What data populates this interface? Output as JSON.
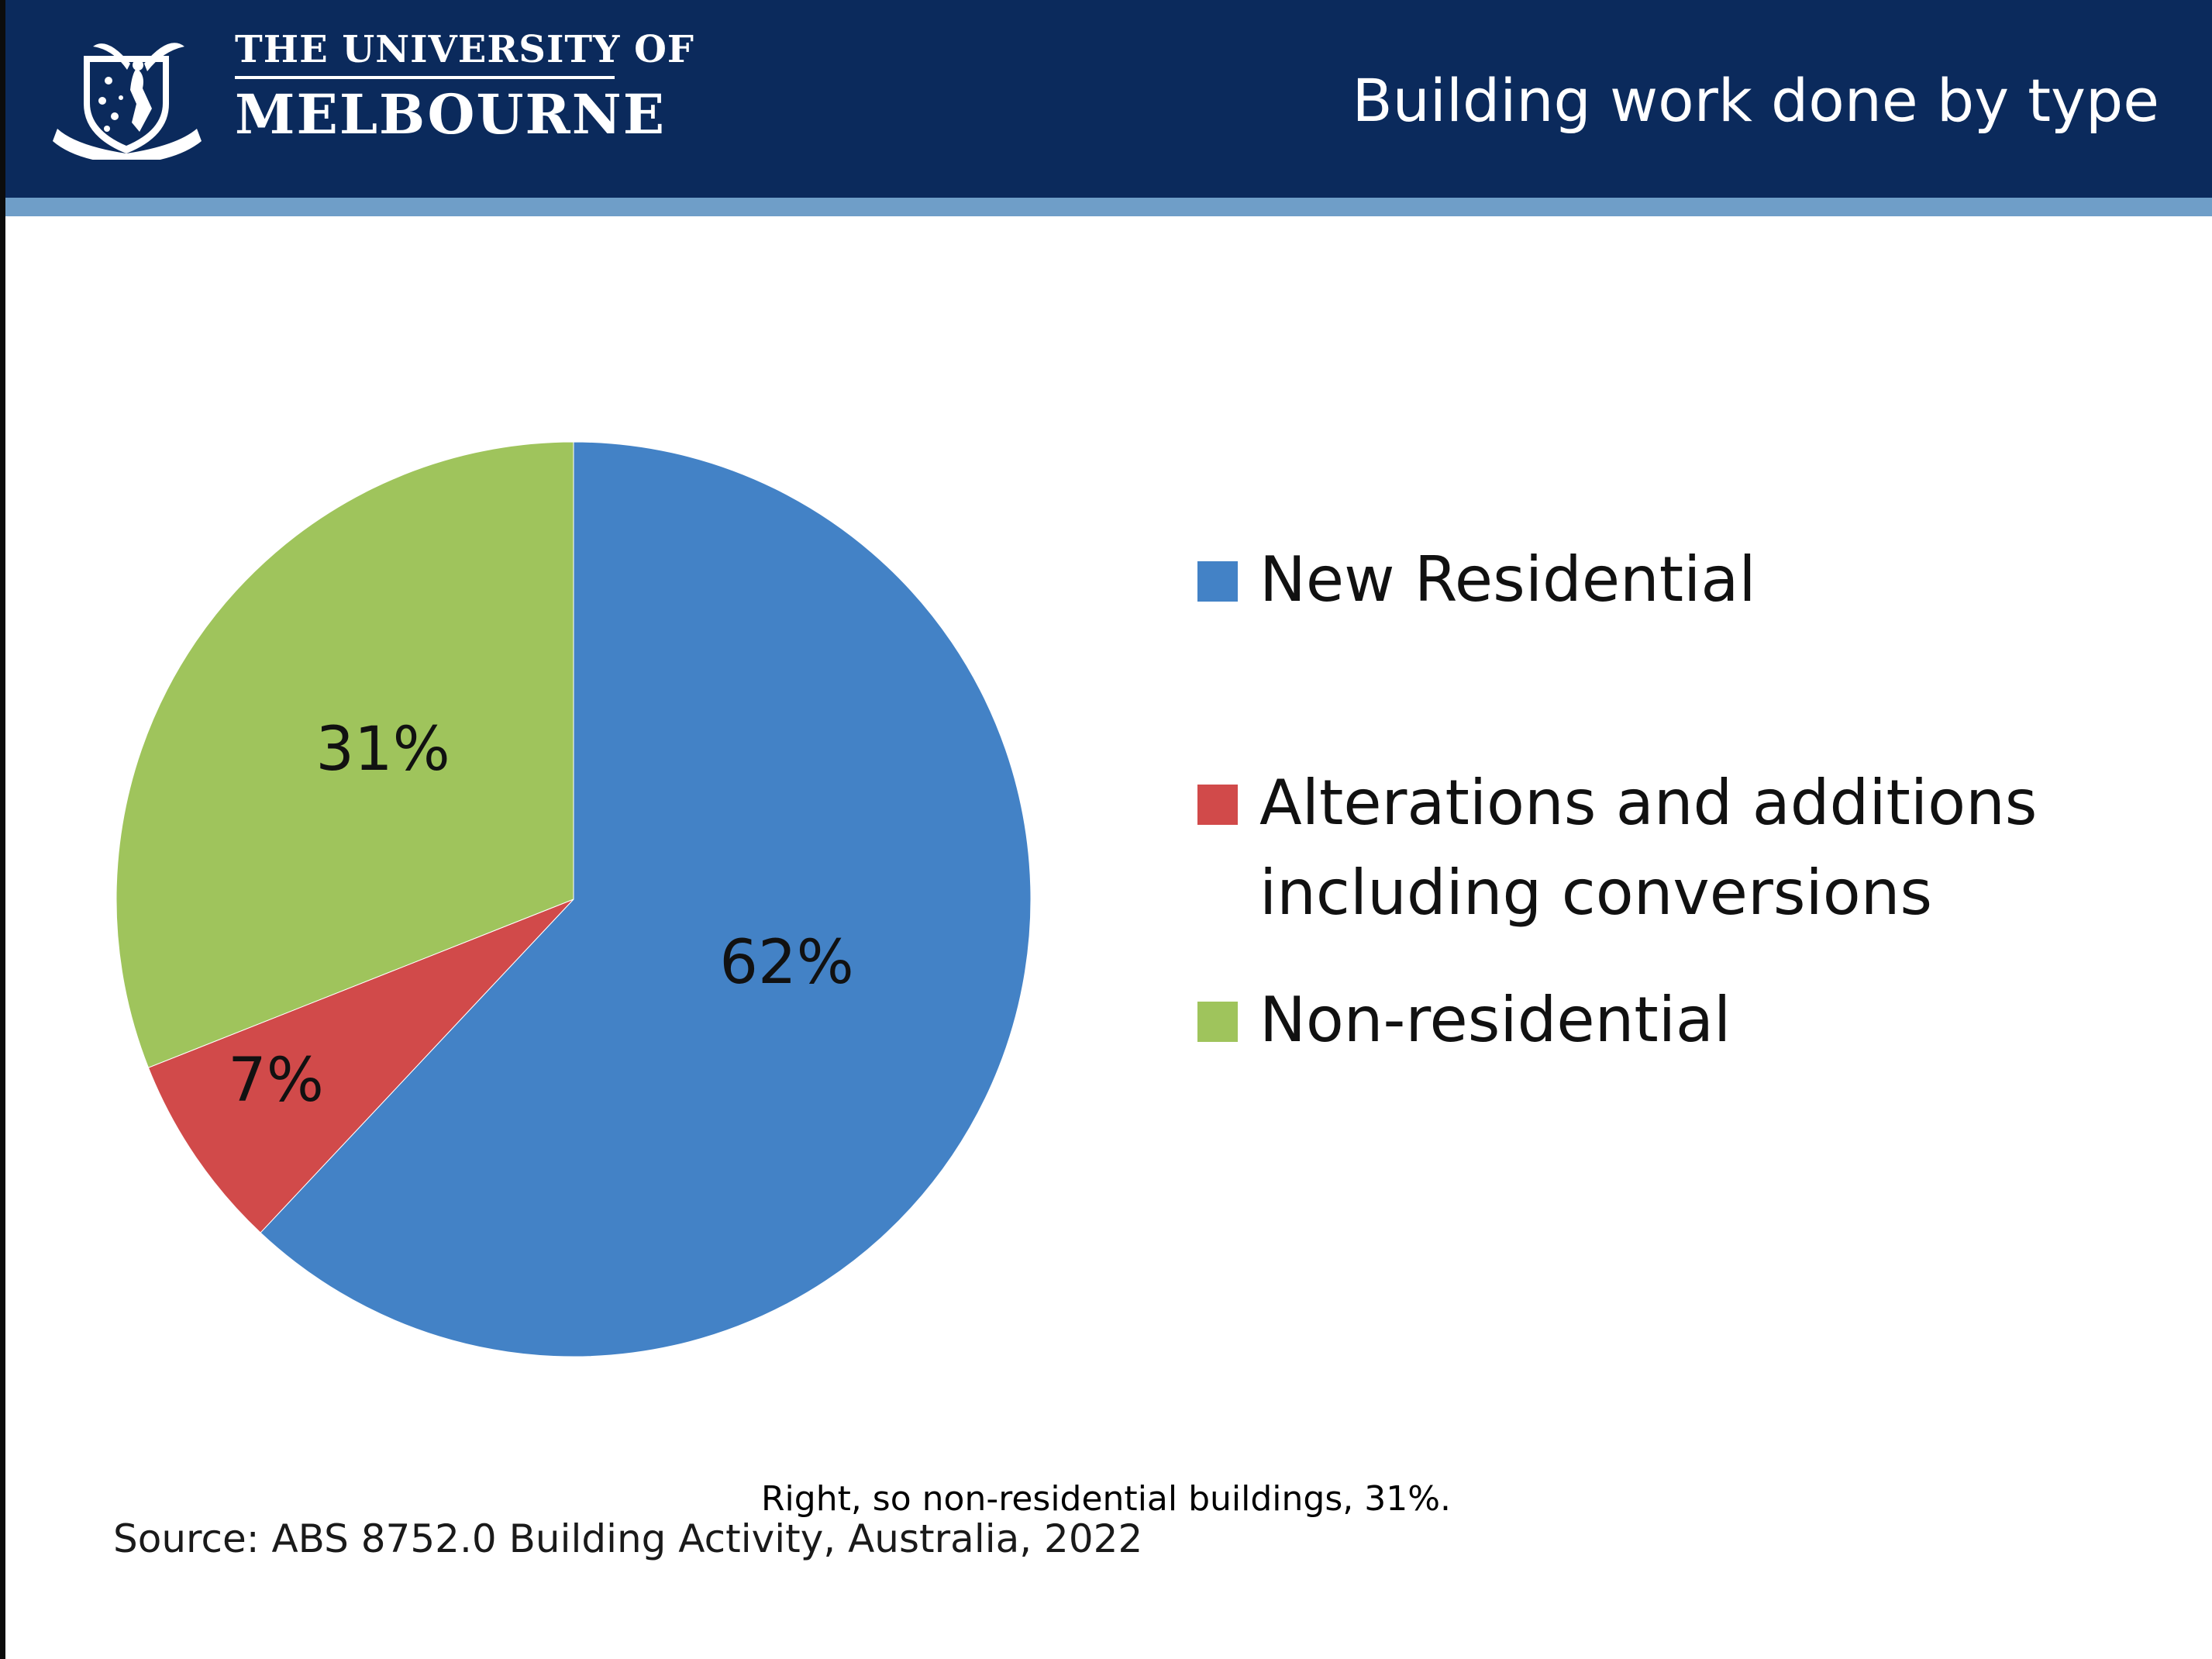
{
  "header": {
    "logo_line1": "THE UNIVERSITY OF",
    "logo_line2": "MELBOURNE",
    "title": "Building work done by type"
  },
  "chart_data": {
    "type": "pie",
    "slices": [
      {
        "name": "New Residential",
        "value": 62,
        "label": "62%",
        "color": "#4382c6"
      },
      {
        "name": "Alterations and additions including conversions",
        "value": 7,
        "label": "7%",
        "color": "#d14a4a"
      },
      {
        "name": "Non-residential",
        "value": 31,
        "label": "31%",
        "color": "#9fc45c"
      }
    ],
    "legend": {
      "placement": "right",
      "items": [
        {
          "lines": [
            "New Residential"
          ],
          "color": "#4382c6"
        },
        {
          "lines": [
            "Alterations and additions",
            "including conversions"
          ],
          "color": "#d14a4a"
        },
        {
          "lines": [
            "Non-residential"
          ],
          "color": "#9fc45c"
        }
      ]
    }
  },
  "footer": {
    "source": "Source: ABS 8752.0 Building Activity, Australia, 2022",
    "caption": "Right, so non-residential buildings, 31%."
  },
  "colors": {
    "header_bg": "#0b2a5c",
    "header_stripe": "#6f9ec8"
  },
  "icons": {
    "logo": "university-crest-icon"
  }
}
